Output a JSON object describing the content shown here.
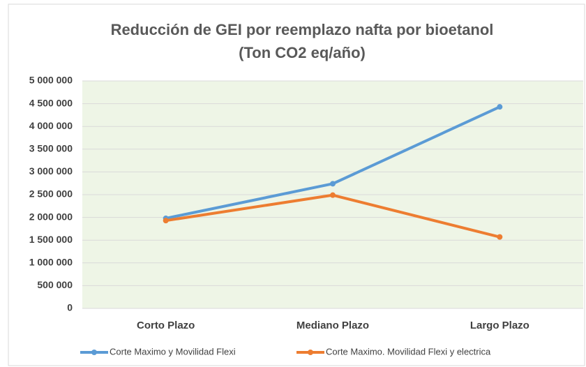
{
  "chart_data": {
    "type": "line",
    "title": "Reducción de GEI por reemplazo nafta por bioetanol",
    "subtitle": "(Ton CO2 eq/año)",
    "categories": [
      "Corto Plazo",
      "Mediano Plazo",
      "Largo Plazo"
    ],
    "series": [
      {
        "name": "Corte Maximo y Movilidad Flexi",
        "color": "#5b9bd5",
        "values": [
          1980000,
          2740000,
          4430000
        ]
      },
      {
        "name": "Corte Maximo. Movilidad Flexi y electrica",
        "color": "#ed7d31",
        "values": [
          1930000,
          2490000,
          1570000
        ]
      }
    ],
    "ylim": [
      0,
      5000000
    ],
    "yticks": [
      0,
      {
        "value": 500000,
        "label": "500 000"
      },
      {
        "value": 1000000,
        "label": "1 000 000"
      },
      {
        "value": 1500000,
        "label": "1 500 000"
      },
      {
        "value": 2000000,
        "label": "2 000 000"
      },
      {
        "value": 2500000,
        "label": "2 500 000"
      },
      {
        "value": 3000000,
        "label": "3 000 000"
      },
      {
        "value": 3500000,
        "label": "3 500 000"
      },
      {
        "value": 4000000,
        "label": "4 000 000"
      },
      {
        "value": 4500000,
        "label": "4 500 000"
      },
      {
        "value": 5000000,
        "label": "5 000 000"
      }
    ],
    "grid": true,
    "legend": "bottom"
  }
}
